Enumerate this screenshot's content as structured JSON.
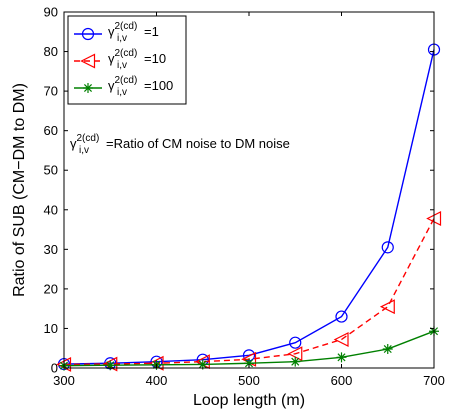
{
  "chart_data": {
    "type": "line",
    "title": "",
    "xlabel": "Loop length (m)",
    "ylabel": "Ratio of SUB (CM−DM to DM)",
    "xlim": [
      300,
      700
    ],
    "ylim": [
      0,
      90
    ],
    "xticks": [
      300,
      400,
      500,
      600,
      700
    ],
    "xtick_labels": [
      "300",
      "400",
      "500",
      "600",
      "700"
    ],
    "yticks": [
      0,
      10,
      20,
      30,
      40,
      50,
      60,
      70,
      80,
      90
    ],
    "ytick_labels": [
      "0",
      "10",
      "20",
      "30",
      "40",
      "50",
      "60",
      "70",
      "80",
      "90"
    ],
    "grid": false,
    "legend_position": "top-left",
    "x": [
      300,
      350,
      400,
      450,
      500,
      550,
      600,
      650,
      700
    ],
    "series": [
      {
        "name": "γ_{i,v}^{2(cd)}=1",
        "legend_base": "γ",
        "legend_sub": "i,v",
        "legend_sup": "2(cd)",
        "legend_tail": "=1",
        "color": "#0000ff",
        "dash": "solid",
        "marker": "circle",
        "values": [
          1.0,
          1.2,
          1.6,
          2.1,
          3.2,
          6.4,
          13.0,
          30.5,
          80.5
        ]
      },
      {
        "name": "γ_{i,v}^{2(cd)}=10",
        "legend_base": "γ",
        "legend_sub": "i,v",
        "legend_sup": "2(cd)",
        "legend_tail": "=10",
        "color": "#ff0000",
        "dash": "dashed",
        "marker": "triangle-left",
        "values": [
          0.9,
          1.0,
          1.2,
          1.6,
          2.2,
          3.6,
          7.2,
          15.5,
          37.8
        ]
      },
      {
        "name": "γ_{i,v}^{2(cd)}=100",
        "legend_base": "γ",
        "legend_sub": "i,v",
        "legend_sup": "2(cd)",
        "legend_tail": "=100",
        "color": "#008000",
        "dash": "solid",
        "marker": "star",
        "values": [
          0.6,
          0.7,
          0.8,
          0.9,
          1.2,
          1.6,
          2.7,
          4.8,
          9.3
        ]
      }
    ],
    "annotation": {
      "base": "γ",
      "sub": "i,v",
      "sup": "2(cd)",
      "tail": "=Ratio of CM noise to DM noise"
    }
  }
}
